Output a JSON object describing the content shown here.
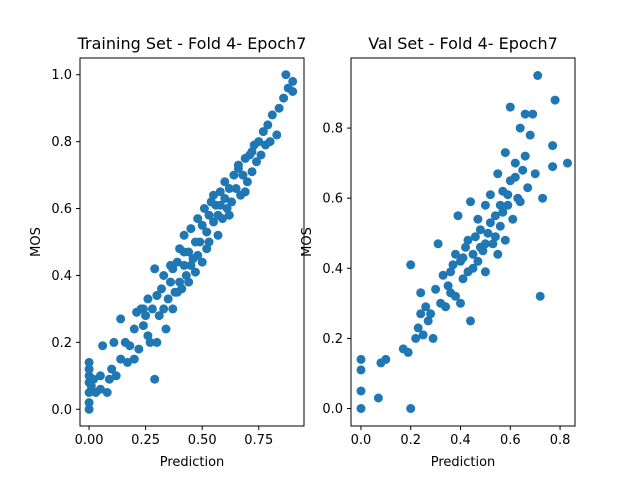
{
  "chart_data": [
    {
      "type": "scatter",
      "title": "Training Set - Fold 4- Epoch7",
      "xlabel": "Prediction",
      "ylabel": "MOS",
      "xlim": [
        -0.04,
        0.95
      ],
      "ylim": [
        -0.05,
        1.05
      ],
      "xticks": [
        0.0,
        0.25,
        0.5,
        0.75
      ],
      "xtick_labels": [
        "0.00",
        "0.25",
        "0.50",
        "0.75"
      ],
      "yticks": [
        0.0,
        0.2,
        0.4,
        0.6,
        0.8,
        1.0
      ],
      "ytick_labels": [
        "0.0",
        "0.2",
        "0.4",
        "0.6",
        "0.8",
        "1.0"
      ],
      "grid": false,
      "marker_color": "#1f77b4",
      "series": [
        {
          "points": [
            [
              0.0,
              0.0
            ],
            [
              0.0,
              0.02
            ],
            [
              0.0,
              0.05
            ],
            [
              0.0,
              0.08
            ],
            [
              0.0,
              0.1
            ],
            [
              0.0,
              0.12
            ],
            [
              0.0,
              0.14
            ],
            [
              0.01,
              0.07
            ],
            [
              0.02,
              0.09
            ],
            [
              0.03,
              0.05
            ],
            [
              0.05,
              0.1
            ],
            [
              0.05,
              0.06
            ],
            [
              0.06,
              0.19
            ],
            [
              0.08,
              0.05
            ],
            [
              0.09,
              0.09
            ],
            [
              0.1,
              0.12
            ],
            [
              0.11,
              0.2
            ],
            [
              0.12,
              0.1
            ],
            [
              0.14,
              0.15
            ],
            [
              0.14,
              0.27
            ],
            [
              0.16,
              0.2
            ],
            [
              0.17,
              0.14
            ],
            [
              0.18,
              0.19
            ],
            [
              0.2,
              0.24
            ],
            [
              0.2,
              0.15
            ],
            [
              0.21,
              0.29
            ],
            [
              0.22,
              0.18
            ],
            [
              0.23,
              0.3
            ],
            [
              0.24,
              0.25
            ],
            [
              0.25,
              0.28
            ],
            [
              0.26,
              0.22
            ],
            [
              0.26,
              0.33
            ],
            [
              0.27,
              0.2
            ],
            [
              0.28,
              0.3
            ],
            [
              0.29,
              0.09
            ],
            [
              0.29,
              0.42
            ],
            [
              0.3,
              0.34
            ],
            [
              0.3,
              0.2
            ],
            [
              0.31,
              0.28
            ],
            [
              0.32,
              0.36
            ],
            [
              0.33,
              0.3
            ],
            [
              0.33,
              0.4
            ],
            [
              0.34,
              0.24
            ],
            [
              0.35,
              0.33
            ],
            [
              0.36,
              0.38
            ],
            [
              0.37,
              0.3
            ],
            [
              0.37,
              0.42
            ],
            [
              0.38,
              0.35
            ],
            [
              0.39,
              0.44
            ],
            [
              0.4,
              0.38
            ],
            [
              0.4,
              0.48
            ],
            [
              0.41,
              0.36
            ],
            [
              0.42,
              0.43
            ],
            [
              0.42,
              0.52
            ],
            [
              0.43,
              0.4
            ],
            [
              0.44,
              0.47
            ],
            [
              0.45,
              0.43
            ],
            [
              0.45,
              0.54
            ],
            [
              0.46,
              0.45
            ],
            [
              0.47,
              0.5
            ],
            [
              0.48,
              0.46
            ],
            [
              0.48,
              0.57
            ],
            [
              0.49,
              0.5
            ],
            [
              0.5,
              0.55
            ],
            [
              0.5,
              0.44
            ],
            [
              0.51,
              0.6
            ],
            [
              0.52,
              0.53
            ],
            [
              0.53,
              0.58
            ],
            [
              0.53,
              0.5
            ],
            [
              0.54,
              0.62
            ],
            [
              0.55,
              0.56
            ],
            [
              0.56,
              0.61
            ],
            [
              0.57,
              0.58
            ],
            [
              0.58,
              0.65
            ],
            [
              0.59,
              0.57
            ],
            [
              0.6,
              0.63
            ],
            [
              0.6,
              0.68
            ],
            [
              0.61,
              0.6
            ],
            [
              0.62,
              0.66
            ],
            [
              0.63,
              0.62
            ],
            [
              0.64,
              0.7
            ],
            [
              0.65,
              0.66
            ],
            [
              0.66,
              0.72
            ],
            [
              0.67,
              0.64
            ],
            [
              0.68,
              0.7
            ],
            [
              0.69,
              0.75
            ],
            [
              0.7,
              0.68
            ],
            [
              0.71,
              0.76
            ],
            [
              0.72,
              0.71
            ],
            [
              0.73,
              0.79
            ],
            [
              0.74,
              0.74
            ],
            [
              0.75,
              0.8
            ],
            [
              0.76,
              0.76
            ],
            [
              0.77,
              0.83
            ],
            [
              0.78,
              0.79
            ],
            [
              0.79,
              0.85
            ],
            [
              0.8,
              0.8
            ],
            [
              0.81,
              0.88
            ],
            [
              0.83,
              0.82
            ],
            [
              0.84,
              0.9
            ],
            [
              0.86,
              0.93
            ],
            [
              0.87,
              1.0
            ],
            [
              0.88,
              0.96
            ],
            [
              0.9,
              0.98
            ],
            [
              0.9,
              0.95
            ],
            [
              0.55,
              0.64
            ],
            [
              0.44,
              0.38
            ],
            [
              0.36,
              0.43
            ],
            [
              0.62,
              0.58
            ],
            [
              0.69,
              0.65
            ],
            [
              0.3,
              0.34
            ],
            [
              0.47,
              0.41
            ],
            [
              0.57,
              0.52
            ],
            [
              0.39,
              0.35
            ],
            [
              0.66,
              0.73
            ],
            [
              0.24,
              0.3
            ],
            [
              0.52,
              0.48
            ],
            [
              0.42,
              0.47
            ],
            [
              0.72,
              0.77
            ],
            [
              0.58,
              0.61
            ]
          ]
        }
      ]
    },
    {
      "type": "scatter",
      "title": "Val Set - Fold 4- Epoch7",
      "xlabel": "Prediction",
      "ylabel": "MOS",
      "xlim": [
        -0.04,
        0.86
      ],
      "ylim": [
        -0.05,
        1.0
      ],
      "xticks": [
        0.0,
        0.2,
        0.4,
        0.6,
        0.8
      ],
      "xtick_labels": [
        "0.0",
        "0.2",
        "0.4",
        "0.6",
        "0.8"
      ],
      "yticks": [
        0.0,
        0.2,
        0.4,
        0.6,
        0.8
      ],
      "ytick_labels": [
        "0.0",
        "0.2",
        "0.4",
        "0.6",
        "0.8"
      ],
      "grid": false,
      "marker_color": "#1f77b4",
      "series": [
        {
          "points": [
            [
              0.0,
              0.0
            ],
            [
              0.0,
              0.05
            ],
            [
              0.0,
              0.11
            ],
            [
              0.0,
              0.14
            ],
            [
              0.07,
              0.03
            ],
            [
              0.08,
              0.13
            ],
            [
              0.1,
              0.14
            ],
            [
              0.17,
              0.17
            ],
            [
              0.19,
              0.16
            ],
            [
              0.2,
              0.41
            ],
            [
              0.2,
              0.0
            ],
            [
              0.22,
              0.2
            ],
            [
              0.23,
              0.23
            ],
            [
              0.24,
              0.27
            ],
            [
              0.24,
              0.33
            ],
            [
              0.25,
              0.21
            ],
            [
              0.26,
              0.29
            ],
            [
              0.27,
              0.25
            ],
            [
              0.28,
              0.27
            ],
            [
              0.29,
              0.2
            ],
            [
              0.3,
              0.34
            ],
            [
              0.31,
              0.47
            ],
            [
              0.32,
              0.3
            ],
            [
              0.33,
              0.38
            ],
            [
              0.34,
              0.29
            ],
            [
              0.35,
              0.35
            ],
            [
              0.36,
              0.33
            ],
            [
              0.37,
              0.41
            ],
            [
              0.38,
              0.44
            ],
            [
              0.39,
              0.55
            ],
            [
              0.4,
              0.3
            ],
            [
              0.4,
              0.42
            ],
            [
              0.41,
              0.37
            ],
            [
              0.42,
              0.46
            ],
            [
              0.43,
              0.39
            ],
            [
              0.44,
              0.59
            ],
            [
              0.44,
              0.25
            ],
            [
              0.45,
              0.44
            ],
            [
              0.46,
              0.49
            ],
            [
              0.47,
              0.42
            ],
            [
              0.48,
              0.51
            ],
            [
              0.49,
              0.45
            ],
            [
              0.5,
              0.58
            ],
            [
              0.5,
              0.39
            ],
            [
              0.51,
              0.5
            ],
            [
              0.52,
              0.61
            ],
            [
              0.53,
              0.47
            ],
            [
              0.54,
              0.55
            ],
            [
              0.55,
              0.67
            ],
            [
              0.55,
              0.44
            ],
            [
              0.56,
              0.52
            ],
            [
              0.57,
              0.62
            ],
            [
              0.58,
              0.48
            ],
            [
              0.58,
              0.73
            ],
            [
              0.59,
              0.58
            ],
            [
              0.6,
              0.65
            ],
            [
              0.6,
              0.86
            ],
            [
              0.61,
              0.54
            ],
            [
              0.62,
              0.7
            ],
            [
              0.63,
              0.6
            ],
            [
              0.64,
              0.8
            ],
            [
              0.65,
              0.68
            ],
            [
              0.66,
              0.84
            ],
            [
              0.67,
              0.63
            ],
            [
              0.68,
              0.78
            ],
            [
              0.69,
              0.84
            ],
            [
              0.7,
              0.67
            ],
            [
              0.71,
              0.95
            ],
            [
              0.72,
              0.32
            ],
            [
              0.73,
              0.6
            ],
            [
              0.77,
              0.69
            ],
            [
              0.77,
              0.75
            ],
            [
              0.78,
              0.88
            ],
            [
              0.83,
              0.7
            ],
            [
              0.48,
              0.46
            ],
            [
              0.52,
              0.53
            ],
            [
              0.45,
              0.4
            ],
            [
              0.57,
              0.56
            ],
            [
              0.43,
              0.48
            ],
            [
              0.62,
              0.66
            ],
            [
              0.36,
              0.39
            ],
            [
              0.54,
              0.49
            ],
            [
              0.59,
              0.61
            ],
            [
              0.47,
              0.54
            ],
            [
              0.41,
              0.43
            ],
            [
              0.5,
              0.47
            ],
            [
              0.64,
              0.59
            ],
            [
              0.38,
              0.32
            ],
            [
              0.56,
              0.58
            ],
            [
              0.66,
              0.72
            ]
          ]
        }
      ]
    }
  ]
}
